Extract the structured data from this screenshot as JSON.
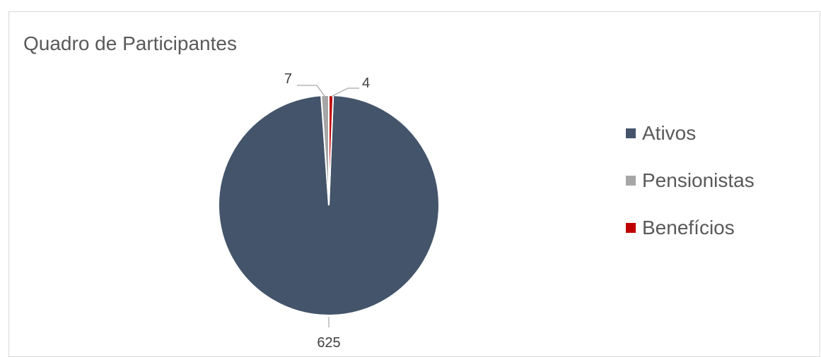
{
  "chart_data": {
    "type": "pie",
    "title": "Quadro de Participantes",
    "categories": [
      "Ativos",
      "Pensionistas",
      "Benefícios"
    ],
    "values": [
      625,
      7,
      4
    ],
    "colors": [
      "#44546a",
      "#a6a6a6",
      "#c00000"
    ],
    "data_labels": [
      "625",
      "7",
      "4"
    ],
    "legend": "right"
  }
}
